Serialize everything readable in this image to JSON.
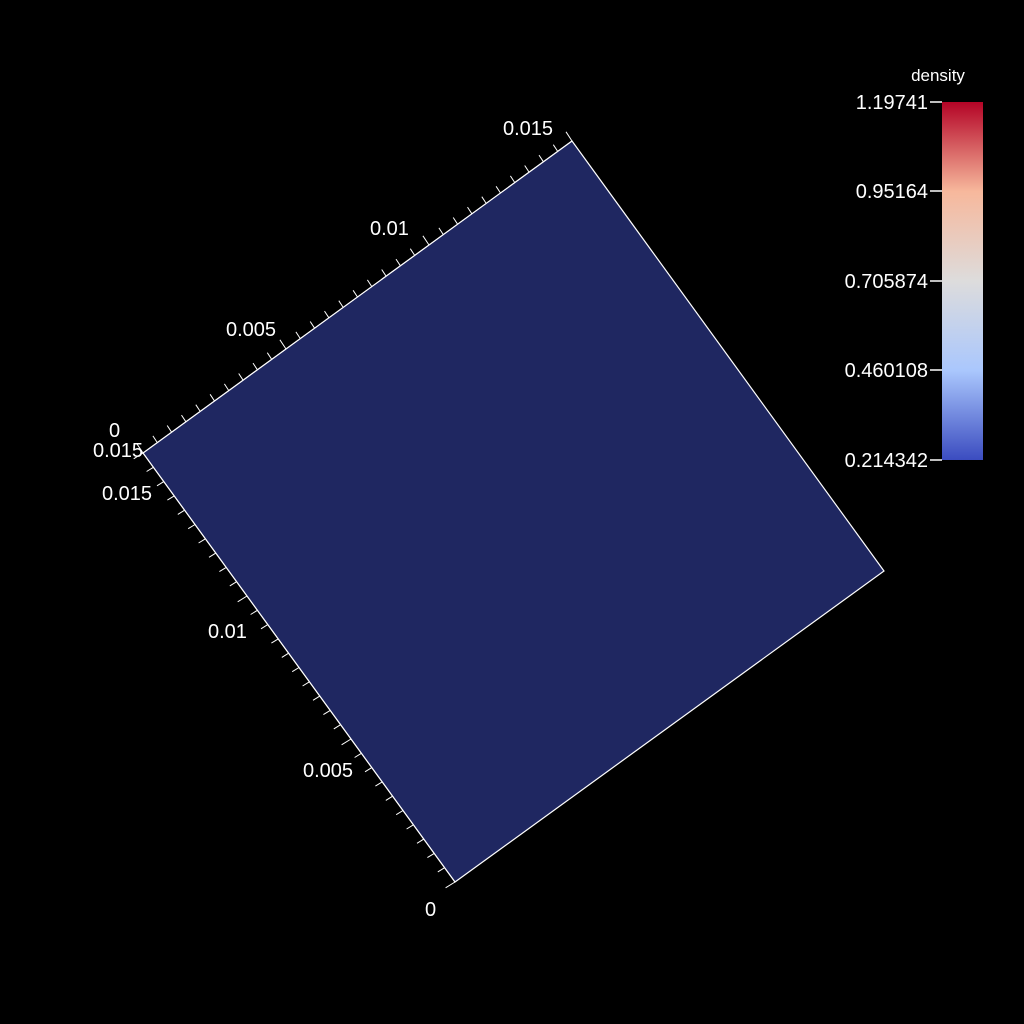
{
  "colorbar": {
    "title": "density",
    "labels": [
      "1.19741",
      "0.95164",
      "0.705874",
      "0.460108",
      "0.214342"
    ],
    "colors": [
      "#b40426",
      "#f7b89c",
      "#dddcdc",
      "#aac7fd",
      "#3b4cc0"
    ]
  },
  "surface": {
    "color": "#1f2761",
    "edge": "#ffffff"
  },
  "axis_upper": {
    "labels": [
      "0",
      "0.005",
      "0.01",
      "0.015"
    ]
  },
  "axis_left": {
    "labels": [
      "0",
      "0.005",
      "0.01",
      "0.015"
    ],
    "end_label": "0.015"
  }
}
